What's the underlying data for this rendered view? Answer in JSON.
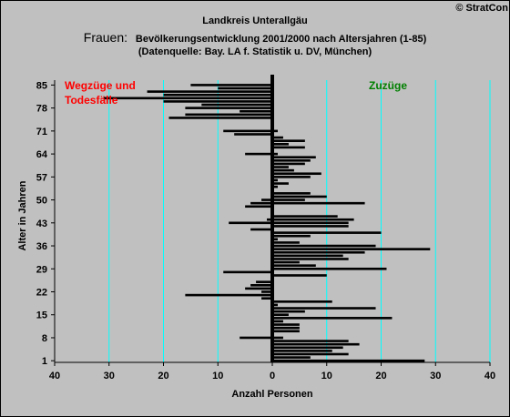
{
  "copyright": "© StratCon",
  "title_line1": "Landkreis Unterallgäu",
  "title_lead": "Frauen:",
  "title_rest": "Bevölkerungsentwicklung 2001/2000 nach Altersjahren (1-85)",
  "title_line3": "(Datenquelle: Bay. LA f. Statistik u. DV, München)",
  "colors": {
    "background": "#c0c0c0",
    "grid": "#00ffff",
    "bars": "#000000",
    "left_label": "#ff0000",
    "right_label": "#008000"
  },
  "chart_data": {
    "type": "bar",
    "orientation": "horizontal",
    "xlabel": "Anzahl Personen",
    "ylabel": "Alter in Jahren",
    "xlim": [
      -40,
      40
    ],
    "x_tick_labels": [
      "40",
      "30",
      "20",
      "10",
      "0",
      "10",
      "20",
      "30",
      "40"
    ],
    "ylim": [
      1,
      85
    ],
    "y_ticks": [
      1,
      8,
      15,
      22,
      29,
      36,
      43,
      50,
      57,
      64,
      71,
      78,
      85
    ],
    "grid": true,
    "annotations": {
      "left": "Wegzüge und\nTodesfälle",
      "right": "Zuzüge"
    },
    "series": [
      {
        "name": "Wegzüge und Todesfälle",
        "sign": "negative",
        "values": [
          0,
          0,
          0,
          0,
          0,
          0,
          0,
          6,
          0,
          0,
          0,
          0,
          0,
          0,
          0,
          0,
          0,
          0,
          0,
          2,
          16,
          2,
          5,
          4,
          3,
          0,
          0,
          9,
          0,
          0,
          0,
          0,
          0,
          0,
          0,
          0,
          0,
          0,
          0,
          0,
          4,
          0,
          8,
          1,
          0,
          0,
          0,
          5,
          4,
          2,
          0,
          0,
          0,
          0,
          0,
          0,
          0,
          0,
          0,
          0,
          0,
          0,
          0,
          5,
          0,
          0,
          0,
          0,
          0,
          7,
          9,
          0,
          0,
          0,
          19,
          16,
          6,
          16,
          13,
          20,
          31,
          20,
          23,
          10,
          15
        ]
      },
      {
        "name": "Zuzüge",
        "sign": "positive",
        "values": [
          28,
          7,
          14,
          11,
          13,
          16,
          14,
          2,
          0,
          5,
          5,
          5,
          2,
          22,
          3,
          6,
          19,
          1,
          11,
          0,
          0,
          0,
          0,
          0,
          0,
          0,
          10,
          0,
          21,
          8,
          5,
          14,
          13,
          17,
          29,
          19,
          5,
          1,
          7,
          20,
          0,
          14,
          14,
          15,
          12,
          0,
          0,
          0,
          17,
          6,
          10,
          7,
          0,
          1,
          3,
          1,
          7,
          9,
          4,
          3,
          6,
          7,
          8,
          1,
          0,
          6,
          3,
          6,
          2,
          0,
          1,
          0,
          0,
          0,
          0,
          0,
          0,
          0,
          0,
          0,
          0,
          0,
          0,
          0,
          0
        ]
      }
    ]
  }
}
